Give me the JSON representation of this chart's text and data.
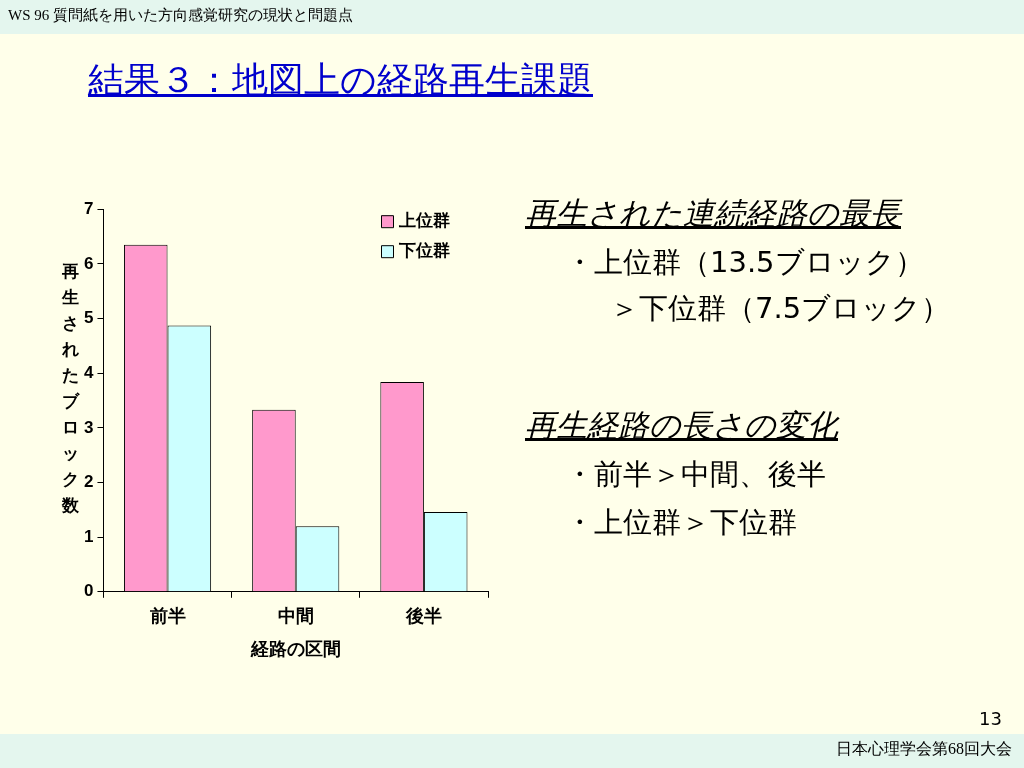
{
  "chart_data": {
    "type": "bar",
    "title": "結果３：地図上の経路再生課題",
    "xlabel": "経路の区間",
    "ylabel": "再生されたブロック数",
    "categories": [
      "前半",
      "中間",
      "後半"
    ],
    "series": [
      {
        "name": "上位群",
        "color": "#ff99cc",
        "values": [
          6.35,
          3.33,
          3.84
        ]
      },
      {
        "name": "下位群",
        "color": "#ccffff",
        "values": [
          4.87,
          1.2,
          1.46
        ]
      }
    ],
    "ylim": [
      0,
      7
    ],
    "yticks": [
      0,
      1,
      2,
      3,
      4,
      5,
      6,
      7
    ],
    "grid": false,
    "legend": "top right",
    "annotations": [
      "WS 96 質問紙を用いた方向感覚研究の現状と問題点",
      "再生された連続経路の最長",
      "・上位群（13.5ブロック）",
      "＞下位群（7.5ブロック）",
      "再生経路の長さの変化",
      "・前半＞中間、後半",
      "・上位群＞下位群",
      "13",
      "日本心理学会第68回大会"
    ]
  }
}
